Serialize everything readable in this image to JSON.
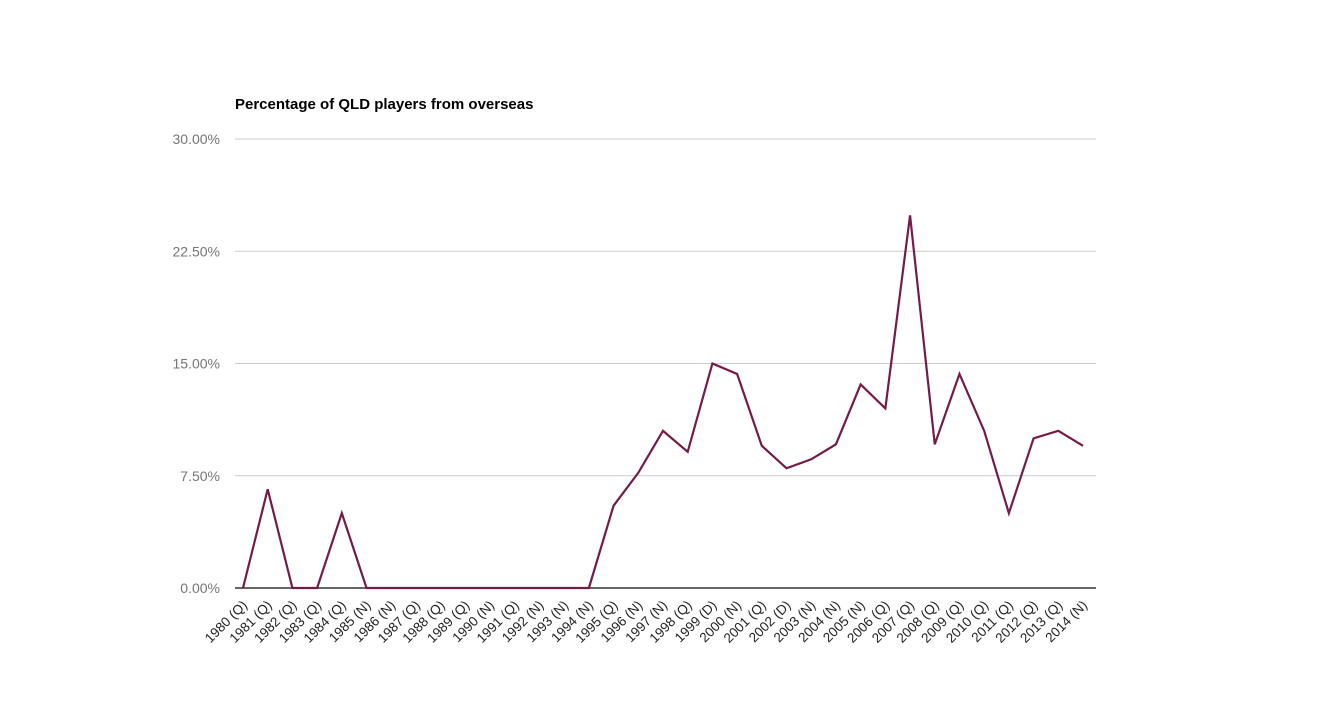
{
  "chart_data": {
    "type": "line",
    "title": "Percentage of QLD players from overseas",
    "xlabel": "",
    "ylabel": "",
    "ylim": [
      0,
      30
    ],
    "grid": true,
    "legend": "none",
    "x_label_rotation": 45,
    "categories": [
      "1980 (Q)",
      "1981 (Q)",
      "1982 (Q)",
      "1983 (Q)",
      "1984 (Q)",
      "1985 (N)",
      "1986 (N)",
      "1987 (Q)",
      "1988 (Q)",
      "1989 (Q)",
      "1990 (N)",
      "1991 (Q)",
      "1992 (N)",
      "1993 (N)",
      "1994 (N)",
      "1995 (Q)",
      "1996 (N)",
      "1997 (N)",
      "1998 (Q)",
      "1999 (D)",
      "2000 (N)",
      "2001 (Q)",
      "2002 (D)",
      "2003 (N)",
      "2004 (N)",
      "2005 (N)",
      "2006 (Q)",
      "2007 (Q)",
      "2008 (Q)",
      "2009 (Q)",
      "2010 (Q)",
      "2011 (Q)",
      "2012 (Q)",
      "2013 (Q)",
      "2014 (N)"
    ],
    "values": [
      0,
      6.6,
      0,
      0,
      5.0,
      0,
      0,
      0,
      0,
      0,
      0,
      0,
      0,
      0,
      0,
      5.5,
      7.7,
      10.5,
      9.1,
      15.0,
      14.3,
      9.5,
      8.0,
      8.6,
      9.6,
      13.6,
      12.0,
      24.9,
      9.6,
      14.3,
      10.5,
      5.0,
      10.0,
      10.5,
      9.5
    ],
    "y_ticks": [
      {
        "value": 0,
        "label": "0.00%"
      },
      {
        "value": 7.5,
        "label": "7.50%"
      },
      {
        "value": 15,
        "label": "15.00%"
      },
      {
        "value": 22.5,
        "label": "22.50%"
      },
      {
        "value": 30,
        "label": "30.00%"
      }
    ]
  },
  "colors": {
    "series": "#741b47",
    "grid": "#cccccc",
    "axis": "#333333",
    "y_label": "#757575",
    "x_label": "#222222",
    "title": "#000000",
    "background": "#ffffff"
  }
}
